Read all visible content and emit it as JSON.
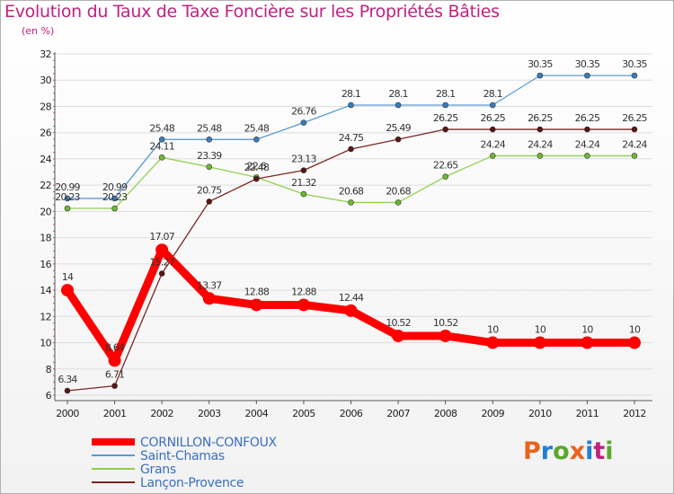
{
  "header": {
    "title": "Evolution du Taux de Taxe Foncière sur les Propriétés Bâties",
    "subtitle": "(en %)"
  },
  "brand": {
    "text": "Proxiti",
    "colors": [
      "#e8641e",
      "#1f7fd1",
      "#5aa82a",
      "#e8641e",
      "#1f7fd1",
      "#c0207f",
      "#5aa82a"
    ]
  },
  "colors": {
    "title": "#c0207f",
    "axis": "#555555",
    "grid": "#dddddd"
  },
  "chart_data": {
    "type": "line",
    "title": "Evolution du Taux de Taxe Foncière sur les Propriétés Bâties",
    "ylabel": "(en %)",
    "xlabel": "",
    "x": [
      "2000",
      "2001",
      "2002",
      "2003",
      "2004",
      "2005",
      "2006",
      "2007",
      "2008",
      "2009",
      "2010",
      "2011",
      "2012"
    ],
    "ylim": [
      6,
      32
    ],
    "yticks": [
      6,
      8,
      10,
      12,
      14,
      16,
      18,
      20,
      22,
      24,
      26,
      28,
      30,
      32
    ],
    "legend_position": "bottom-left",
    "series": [
      {
        "name": "Saint-Chamas",
        "color": "#5b9bd5",
        "marker": "#3a7bbf",
        "weight": "thin",
        "values": [
          20.99,
          20.99,
          25.48,
          25.48,
          25.48,
          26.76,
          28.1,
          28.1,
          28.1,
          28.1,
          30.35,
          30.35,
          30.35
        ],
        "labels": [
          "20.99",
          "20.99",
          "25.48",
          "25.48",
          "25.48",
          "26.76",
          "28.1",
          "28.1",
          "28.1",
          "28.1",
          "30.35",
          "30.35",
          "30.35"
        ]
      },
      {
        "name": "Grans",
        "color": "#8fd14f",
        "marker": "#6fb82f",
        "weight": "thin",
        "values": [
          20.23,
          20.23,
          24.11,
          23.39,
          22.6,
          21.32,
          20.68,
          20.68,
          22.65,
          24.24,
          24.24,
          24.24,
          24.24
        ],
        "labels": [
          "20.23",
          "20.23",
          "24.11",
          "23.39",
          "22.6",
          "21.32",
          "20.68",
          "20.68",
          "22.65",
          "24.24",
          "24.24",
          "24.24",
          "24.24"
        ]
      },
      {
        "name": "Lançon-Provence",
        "color": "#7b2525",
        "marker": "#5a1515",
        "weight": "thin",
        "values": [
          6.34,
          6.71,
          15.27,
          20.75,
          22.48,
          23.13,
          24.75,
          25.49,
          26.25,
          26.25,
          26.25,
          26.25,
          26.25
        ],
        "labels": [
          "6.34",
          "6.71",
          "15.27",
          "20.75",
          "22.48",
          "23.13",
          "24.75",
          "25.49",
          "26.25",
          "26.25",
          "26.25",
          "26.25",
          "26.25"
        ]
      },
      {
        "name": "CORNILLON-CONFOUX",
        "color": "#ff0000",
        "marker": "#ff0000",
        "weight": "thick",
        "values": [
          14,
          8.64,
          17.07,
          13.37,
          12.88,
          12.88,
          12.44,
          10.52,
          10.52,
          10,
          10,
          10,
          10
        ],
        "labels": [
          "14",
          "8.64",
          "17.07",
          "13.37",
          "12.88",
          "12.88",
          "12.44",
          "10.52",
          "10.52",
          "10",
          "10",
          "10",
          "10"
        ]
      }
    ],
    "legend": [
      {
        "name": "CORNILLON-CONFOUX",
        "color": "#ff0000",
        "weight": "thick"
      },
      {
        "name": "Saint-Chamas",
        "color": "#5b9bd5",
        "weight": "thin"
      },
      {
        "name": "Grans",
        "color": "#8fd14f",
        "weight": "thin"
      },
      {
        "name": "Lançon-Provence",
        "color": "#7b2525",
        "weight": "thin"
      }
    ]
  }
}
